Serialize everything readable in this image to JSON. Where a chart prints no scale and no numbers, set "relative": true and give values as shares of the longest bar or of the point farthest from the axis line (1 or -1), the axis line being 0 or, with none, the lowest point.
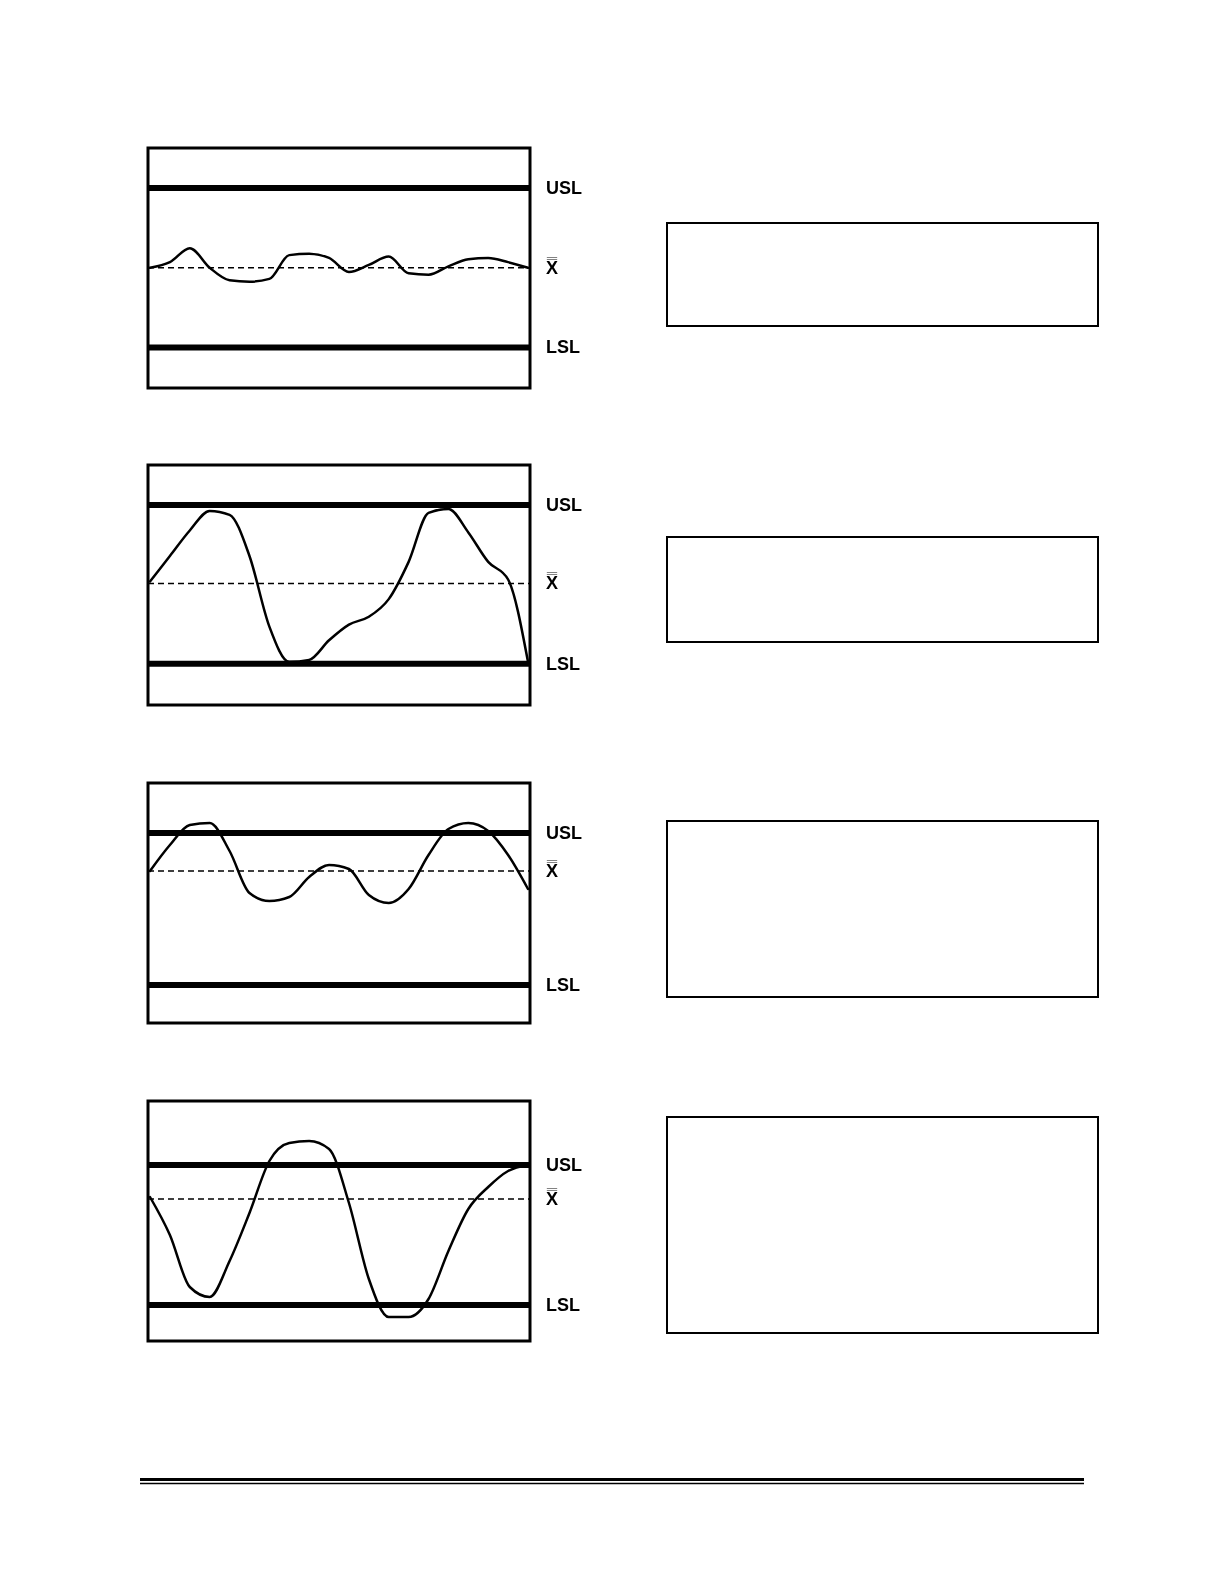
{
  "chart_data": [
    {
      "type": "line",
      "relative": true,
      "categories": [
        null,
        null,
        null,
        null,
        null,
        null,
        null,
        null,
        null,
        null,
        null,
        null,
        null,
        null,
        null,
        null,
        null,
        null,
        null,
        null
      ],
      "series": [
        {
          "color": "#000000",
          "values": [
            0.86,
            0.9,
            1.0,
            0.86,
            0.77,
            0.76,
            0.78,
            0.95,
            0.96,
            0.93,
            0.83,
            0.88,
            0.94,
            0.82,
            0.81,
            0.87,
            0.92,
            0.93,
            0.9,
            0.86
          ]
        }
      ],
      "ref_lines": [
        {
          "axis": "y",
          "value": 1.43,
          "label": "USL",
          "line_style": "solid"
        },
        {
          "axis": "y",
          "value": 0.86,
          "label": "X̿",
          "line_style": "dashed"
        },
        {
          "axis": "y",
          "value": 0.29,
          "label": "LSL",
          "line_style": "solid"
        }
      ]
    },
    {
      "type": "line",
      "relative": true,
      "categories": [
        null,
        null,
        null,
        null,
        null,
        null,
        null,
        null,
        null,
        null,
        null,
        null,
        null,
        null,
        null,
        null,
        null,
        null,
        null,
        null
      ],
      "series": [
        {
          "color": "#000000",
          "values": [
            0.63,
            0.76,
            0.89,
            0.99,
            0.97,
            0.76,
            0.4,
            0.22,
            0.23,
            0.33,
            0.41,
            0.45,
            0.54,
            0.73,
            0.98,
            1.0,
            0.88,
            0.73,
            0.64,
            0.22
          ]
        }
      ],
      "ref_lines": [
        {
          "axis": "y",
          "value": 1.02,
          "label": "USL",
          "line_style": "solid"
        },
        {
          "axis": "y",
          "value": 0.62,
          "label": "X̿",
          "line_style": "dashed"
        },
        {
          "axis": "y",
          "value": 0.21,
          "label": "LSL",
          "line_style": "solid"
        }
      ]
    },
    {
      "type": "line",
      "relative": true,
      "categories": [
        null,
        null,
        null,
        null,
        null,
        null,
        null,
        null,
        null,
        null,
        null,
        null,
        null,
        null,
        null,
        null,
        null,
        null,
        null,
        null
      ],
      "series": [
        {
          "color": "#000000",
          "values": [
            0.76,
            0.89,
            0.99,
            1.0,
            0.86,
            0.65,
            0.61,
            0.63,
            0.73,
            0.79,
            0.77,
            0.64,
            0.6,
            0.67,
            0.84,
            0.97,
            1.0,
            0.96,
            0.84,
            0.67
          ]
        }
      ],
      "ref_lines": [
        {
          "axis": "y",
          "value": 0.95,
          "label": "USL",
          "line_style": "solid"
        },
        {
          "axis": "y",
          "value": 0.76,
          "label": "X̿",
          "line_style": "dashed"
        },
        {
          "axis": "y",
          "value": 0.19,
          "label": "LSL",
          "line_style": "solid"
        }
      ]
    },
    {
      "type": "line",
      "relative": true,
      "categories": [
        null,
        null,
        null,
        null,
        null,
        null,
        null,
        null,
        null,
        null,
        null,
        null,
        null,
        null,
        null,
        null,
        null,
        null,
        null,
        null
      ],
      "series": [
        {
          "color": "#000000",
          "values": [
            0.72,
            0.53,
            0.27,
            0.22,
            0.4,
            0.64,
            0.9,
            0.99,
            1.0,
            0.96,
            0.69,
            0.31,
            0.12,
            0.12,
            0.21,
            0.45,
            0.66,
            0.77,
            0.85,
            0.88
          ]
        }
      ],
      "ref_lines": [
        {
          "axis": "y",
          "value": 0.88,
          "label": "USL",
          "line_style": "solid"
        },
        {
          "axis": "y",
          "value": 0.71,
          "label": "X̿",
          "line_style": "dashed"
        },
        {
          "axis": "y",
          "value": 0.18,
          "label": "LSL",
          "line_style": "solid"
        }
      ]
    }
  ]
}
